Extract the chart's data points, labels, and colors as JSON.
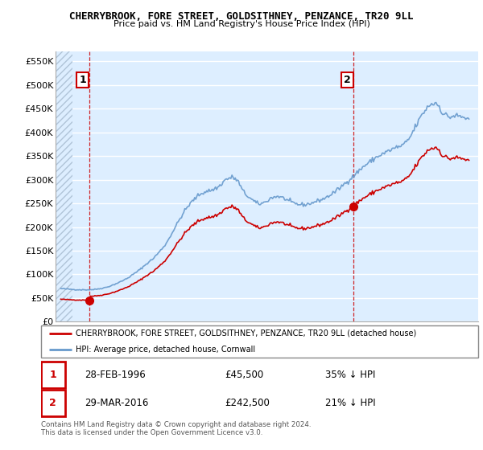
{
  "title": "CHERRYBROOK, FORE STREET, GOLDSITHNEY, PENZANCE, TR20 9LL",
  "subtitle": "Price paid vs. HM Land Registry's House Price Index (HPI)",
  "legend_line1": "CHERRYBROOK, FORE STREET, GOLDSITHNEY, PENZANCE, TR20 9LL (detached house)",
  "legend_line2": "HPI: Average price, detached house, Cornwall",
  "sale1_date": "28-FEB-1996",
  "sale1_price": "£45,500",
  "sale1_hpi": "35% ↓ HPI",
  "sale2_date": "29-MAR-2016",
  "sale2_price": "£242,500",
  "sale2_hpi": "21% ↓ HPI",
  "footer": "Contains HM Land Registry data © Crown copyright and database right 2024.\nThis data is licensed under the Open Government Licence v3.0.",
  "red_color": "#cc0000",
  "blue_color": "#6699cc",
  "chart_bg": "#ddeeff",
  "hatch_color": "#c8d8e8",
  "ylim": [
    0,
    570000
  ],
  "yticks": [
    0,
    50000,
    100000,
    150000,
    200000,
    250000,
    300000,
    350000,
    400000,
    450000,
    500000,
    550000
  ],
  "ytick_labels": [
    "£0",
    "£50K",
    "£100K",
    "£150K",
    "£200K",
    "£250K",
    "£300K",
    "£350K",
    "£400K",
    "£450K",
    "£500K",
    "£550K"
  ],
  "sale1_x": 1996.17,
  "sale1_y": 45500,
  "sale2_x": 2016.25,
  "sale2_y": 242500,
  "xlim_left": 1993.6,
  "xlim_right": 2025.7
}
